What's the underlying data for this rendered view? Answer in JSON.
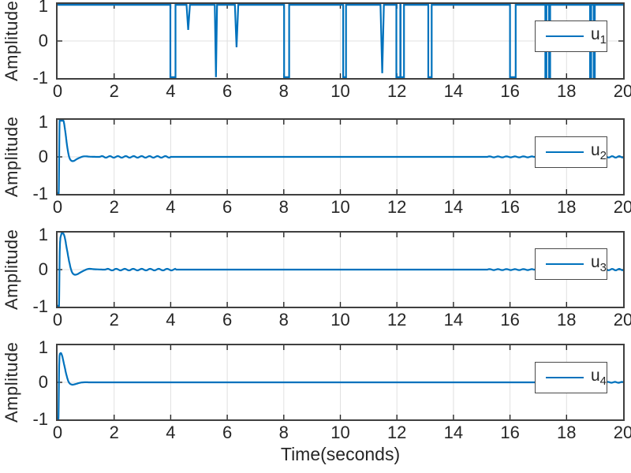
{
  "figure": {
    "xlabel": "Time(seconds)",
    "background": "#ffffff"
  },
  "colors": {
    "line": "#0072bd",
    "grid": "#e0e0e0",
    "axis_border": "#3f3f3f",
    "tick": "#262626",
    "text": "#262626",
    "legend_border": "#4a4a4a"
  },
  "axes": {
    "x_range": [
      0,
      20
    ],
    "y_range": [
      -1,
      1
    ],
    "x_ticks": [
      0,
      2,
      4,
      6,
      8,
      10,
      12,
      14,
      16,
      18,
      20
    ],
    "y_tick_labels": [
      "1",
      "0",
      "-1"
    ],
    "grid": true
  },
  "chart_data": [
    {
      "type": "line",
      "ylabel": "Amplitude",
      "legend": {
        "base": "u",
        "sub": "1",
        "position": "east"
      },
      "x_range": [
        0,
        20
      ],
      "y_range": [
        -1,
        1
      ],
      "series": {
        "kind": "baseline_with_spikes",
        "baseline": 1,
        "spikes": [
          {
            "t": 4.08,
            "v": -1.0,
            "w": 0.09,
            "shape": "band"
          },
          {
            "t": 4.62,
            "v": 0.3,
            "w": 0.06,
            "shape": "taper"
          },
          {
            "t": 5.6,
            "v": -1.0,
            "w": 0.04,
            "shape": "taper"
          },
          {
            "t": 6.33,
            "v": -0.17,
            "w": 0.06,
            "shape": "taper"
          },
          {
            "t": 8.1,
            "v": -1.0,
            "w": 0.09,
            "shape": "band"
          },
          {
            "t": 10.15,
            "v": -1.0,
            "w": 0.05,
            "shape": "band"
          },
          {
            "t": 11.48,
            "v": -0.87,
            "w": 0.06,
            "shape": "taper"
          },
          {
            "t": 12.05,
            "v": -1.0,
            "w": 0.07,
            "shape": "band"
          },
          {
            "t": 12.19,
            "v": -1.0,
            "w": 0.06,
            "shape": "band"
          },
          {
            "t": 13.17,
            "v": -1.0,
            "w": 0.06,
            "shape": "band"
          },
          {
            "t": 16.1,
            "v": -1.0,
            "w": 0.1,
            "shape": "band"
          },
          {
            "t": 17.27,
            "v": -1.0,
            "w": 0.02,
            "shape": "band"
          },
          {
            "t": 17.4,
            "v": -1.0,
            "w": 0.02,
            "shape": "band"
          },
          {
            "t": 18.85,
            "v": -1.0,
            "w": 0.02,
            "shape": "band"
          },
          {
            "t": 18.98,
            "v": -1.0,
            "w": 0.02,
            "shape": "band"
          }
        ]
      }
    },
    {
      "type": "line",
      "ylabel": "Amplitude",
      "legend": {
        "base": "u",
        "sub": "2",
        "position": "east"
      },
      "x_range": [
        0,
        20
      ],
      "y_range": [
        -1,
        1
      ],
      "series": {
        "kind": "keypoints",
        "points": [
          [
            0,
            -1
          ],
          [
            0.04,
            -1
          ],
          [
            0.07,
            0.92
          ],
          [
            0.11,
            1
          ],
          [
            0.2,
            1
          ],
          [
            0.27,
            0.7
          ],
          [
            0.34,
            0.28
          ],
          [
            0.41,
            0.0
          ],
          [
            0.48,
            -0.1
          ],
          [
            0.57,
            -0.11
          ],
          [
            0.68,
            -0.06
          ],
          [
            0.82,
            -0.01
          ],
          [
            0.95,
            0.015
          ],
          [
            1.15,
            0.005
          ],
          [
            1.4,
            0
          ]
        ],
        "ripples": [
          {
            "from": 1.5,
            "to": 4.0,
            "amp": 0.022,
            "period": 0.28
          },
          {
            "from": 15.2,
            "to": 16.8,
            "amp": 0.013,
            "period": 0.3
          },
          {
            "from": 19.3,
            "to": 20.0,
            "amp": 0.02,
            "period": 0.25
          }
        ]
      }
    },
    {
      "type": "line",
      "ylabel": "Amplitude",
      "legend": {
        "base": "u",
        "sub": "3",
        "position": "east"
      },
      "x_range": [
        0,
        20
      ],
      "y_range": [
        -1,
        1
      ],
      "series": {
        "kind": "keypoints",
        "points": [
          [
            0,
            -1
          ],
          [
            0.05,
            -1
          ],
          [
            0.08,
            0.6
          ],
          [
            0.13,
            0.95
          ],
          [
            0.18,
            1
          ],
          [
            0.25,
            0.88
          ],
          [
            0.33,
            0.55
          ],
          [
            0.42,
            0.18
          ],
          [
            0.5,
            -0.05
          ],
          [
            0.58,
            -0.13
          ],
          [
            0.68,
            -0.13
          ],
          [
            0.8,
            -0.08
          ],
          [
            0.95,
            -0.02
          ],
          [
            1.1,
            0.02
          ],
          [
            1.3,
            0.01
          ],
          [
            1.6,
            0
          ]
        ],
        "ripples": [
          {
            "from": 1.7,
            "to": 4.2,
            "amp": 0.022,
            "period": 0.3
          },
          {
            "from": 15.2,
            "to": 16.8,
            "amp": 0.013,
            "period": 0.3
          },
          {
            "from": 19.3,
            "to": 20.0,
            "amp": 0.02,
            "period": 0.25
          }
        ]
      }
    },
    {
      "type": "line",
      "ylabel": "Amplitude",
      "legend": {
        "base": "u",
        "sub": "4",
        "position": "east"
      },
      "x_range": [
        0,
        20
      ],
      "y_range": [
        -1,
        1
      ],
      "series": {
        "kind": "keypoints",
        "points": [
          [
            0,
            -1
          ],
          [
            0.03,
            -1
          ],
          [
            0.06,
            0.55
          ],
          [
            0.1,
            0.78
          ],
          [
            0.16,
            0.72
          ],
          [
            0.24,
            0.45
          ],
          [
            0.32,
            0.18
          ],
          [
            0.4,
            0.0
          ],
          [
            0.5,
            -0.06
          ],
          [
            0.62,
            -0.05
          ],
          [
            0.75,
            -0.02
          ],
          [
            0.9,
            0
          ],
          [
            1.2,
            0
          ]
        ],
        "ripples": [
          {
            "from": 19.4,
            "to": 20.0,
            "amp": 0.012,
            "period": 0.25
          }
        ]
      }
    }
  ]
}
